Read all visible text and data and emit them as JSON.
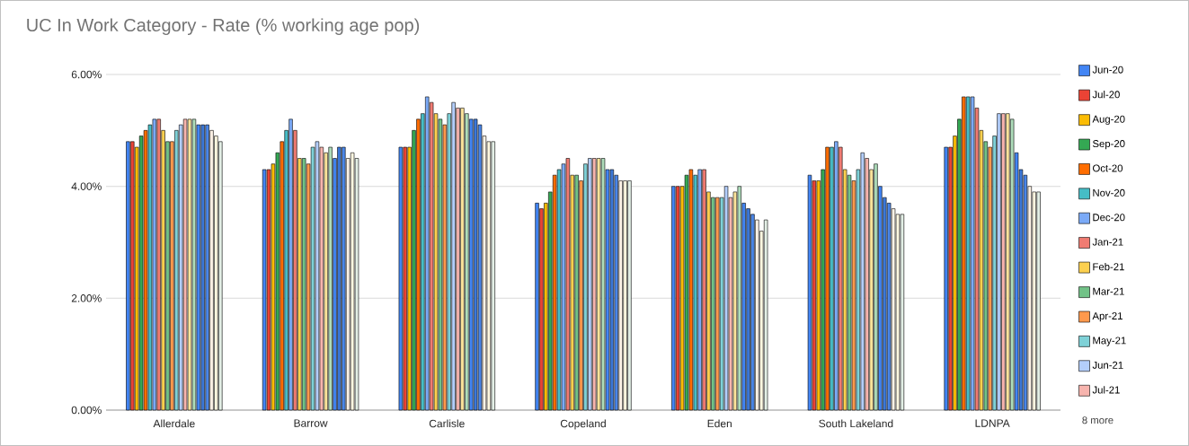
{
  "chart_data": {
    "type": "bar",
    "title": "UC In Work Category - Rate (% working age pop)",
    "categories": [
      "Allerdale",
      "Barrow",
      "Carlisle",
      "Copeland",
      "Eden",
      "South Lakeland",
      "LDNPA"
    ],
    "ylim": [
      0,
      6
    ],
    "yticks": [
      {
        "value": 0,
        "label": "0.00%"
      },
      {
        "value": 2,
        "label": "2.00%"
      },
      {
        "value": 4,
        "label": "4.00%"
      },
      {
        "value": 6,
        "label": "6.00%"
      }
    ],
    "grid": "y",
    "legend": "right",
    "annotations": [
      "8 more"
    ],
    "series": [
      {
        "name": "Jun-20",
        "color": "#4285f4",
        "values": [
          4.8,
          4.3,
          4.7,
          3.7,
          4.0,
          4.2,
          4.7
        ]
      },
      {
        "name": "Jul-20",
        "color": "#ea4335",
        "values": [
          4.8,
          4.3,
          4.7,
          3.6,
          4.0,
          4.1,
          4.7
        ]
      },
      {
        "name": "Aug-20",
        "color": "#fbbc04",
        "values": [
          4.7,
          4.4,
          4.7,
          3.7,
          4.0,
          4.1,
          4.9
        ]
      },
      {
        "name": "Sep-20",
        "color": "#34a853",
        "values": [
          4.9,
          4.6,
          5.0,
          3.9,
          4.2,
          4.3,
          5.2
        ]
      },
      {
        "name": "Oct-20",
        "color": "#ff6d01",
        "values": [
          5.0,
          4.8,
          5.2,
          4.2,
          4.3,
          4.7,
          5.6
        ]
      },
      {
        "name": "Nov-20",
        "color": "#46bdc6",
        "values": [
          5.1,
          5.0,
          5.3,
          4.3,
          4.2,
          4.7,
          5.6
        ]
      },
      {
        "name": "Dec-20",
        "color": "#7baaf7",
        "values": [
          5.2,
          5.2,
          5.6,
          4.4,
          4.3,
          4.8,
          5.6
        ]
      },
      {
        "name": "Jan-21",
        "color": "#f07b72",
        "values": [
          5.2,
          5.0,
          5.5,
          4.5,
          4.3,
          4.7,
          5.4
        ]
      },
      {
        "name": "Feb-21",
        "color": "#fcd04f",
        "values": [
          5.0,
          4.5,
          5.3,
          4.2,
          3.9,
          4.3,
          5.0
        ]
      },
      {
        "name": "Mar-21",
        "color": "#71c287",
        "values": [
          4.8,
          4.5,
          5.2,
          4.2,
          3.8,
          4.2,
          4.8
        ]
      },
      {
        "name": "Apr-21",
        "color": "#ff994d",
        "values": [
          4.8,
          4.4,
          5.1,
          4.1,
          3.8,
          4.1,
          4.7
        ]
      },
      {
        "name": "May-21",
        "color": "#7ed1d7",
        "values": [
          5.0,
          4.7,
          5.3,
          4.4,
          3.8,
          4.3,
          4.9
        ]
      },
      {
        "name": "Jun-21",
        "color": "#b3cefb",
        "values": [
          5.1,
          4.8,
          5.5,
          4.5,
          4.0,
          4.6,
          5.3
        ]
      },
      {
        "name": "Jul-21",
        "color": "#f7b4ae",
        "values": [
          5.2,
          4.7,
          5.4,
          4.5,
          3.8,
          4.5,
          5.3
        ]
      },
      {
        "color": "#fde49b",
        "values": [
          5.2,
          4.6,
          5.4,
          4.5,
          3.9,
          4.3,
          5.3
        ]
      },
      {
        "color": "#aedcba",
        "values": [
          5.2,
          4.7,
          5.3,
          4.5,
          4.0,
          4.4,
          5.2
        ]
      },
      {
        "color": "#4285f4",
        "values": [
          5.1,
          4.5,
          5.2,
          4.3,
          3.7,
          4.0,
          4.6
        ]
      },
      {
        "color": "#3c78d8",
        "values": [
          5.1,
          4.7,
          5.2,
          4.3,
          3.6,
          3.8,
          4.3
        ]
      },
      {
        "color": "#4a86e8",
        "values": [
          5.1,
          4.7,
          5.1,
          4.2,
          3.5,
          3.7,
          4.2
        ]
      },
      {
        "color": "#fdf3e7",
        "values": [
          5.0,
          4.5,
          4.9,
          4.1,
          3.4,
          3.6,
          4.0
        ]
      },
      {
        "color": "#fff8e1",
        "values": [
          4.9,
          4.6,
          4.8,
          4.1,
          3.2,
          3.5,
          3.9
        ]
      },
      {
        "color": "#e3efe6",
        "values": [
          4.8,
          4.5,
          4.8,
          4.1,
          3.4,
          3.5,
          3.9
        ]
      }
    ]
  }
}
